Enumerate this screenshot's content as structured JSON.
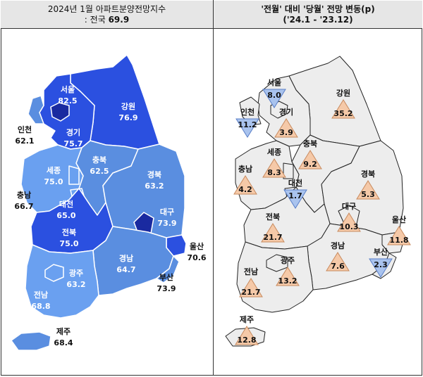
{
  "left_panel": {
    "title_line1": "2024년 1월 아파트분양전망지수",
    "title_line2_label": ": 전국",
    "title_line2_value": "69.9",
    "regions": [
      {
        "name": "서울",
        "value": "82.5",
        "color": "#2b50e0"
      },
      {
        "name": "강원",
        "value": "76.9",
        "color": "#2b50e0"
      },
      {
        "name": "인천",
        "value": "62.1",
        "color": "#ffffff"
      },
      {
        "name": "경기",
        "value": "75.7",
        "color": "#2b50e0"
      },
      {
        "name": "충북",
        "value": "62.5",
        "color": "#5a8ee0"
      },
      {
        "name": "세종",
        "value": "75.0",
        "color": "#6aa0f0"
      },
      {
        "name": "경북",
        "value": "63.2",
        "color": "#5a8ee0"
      },
      {
        "name": "충남",
        "value": "66.7",
        "color": "#ffffff"
      },
      {
        "name": "대전",
        "value": "65.0",
        "color": "#6aa0f0"
      },
      {
        "name": "대구",
        "value": "73.9",
        "color": "#5a8ee0"
      },
      {
        "name": "전북",
        "value": "75.0",
        "color": "#2b50e0"
      },
      {
        "name": "울산",
        "value": "70.6",
        "color": "#ffffff"
      },
      {
        "name": "경남",
        "value": "64.7",
        "color": "#5a8ee0"
      },
      {
        "name": "광주",
        "value": "63.2",
        "color": "#6aa0f0"
      },
      {
        "name": "부산",
        "value": "73.9",
        "color": "#ffffff"
      },
      {
        "name": "전남",
        "value": "68.8",
        "color": "#6aa0f0"
      },
      {
        "name": "제주",
        "value": "68.4",
        "color": "#ffffff"
      }
    ]
  },
  "right_panel": {
    "title_line1": "'전월' 대비 '당월' 전망 변동(p)",
    "title_line2": "('24.1 - '23.12)",
    "regions": [
      {
        "name": "서울",
        "value": "8.0",
        "direction": "down"
      },
      {
        "name": "강원",
        "value": "35.2",
        "direction": "up"
      },
      {
        "name": "인천",
        "value": "11.2",
        "direction": "down"
      },
      {
        "name": "경기",
        "value": "3.9",
        "direction": "up"
      },
      {
        "name": "충북",
        "value": "9.2",
        "direction": "up"
      },
      {
        "name": "세종",
        "value": "8.3",
        "direction": "up"
      },
      {
        "name": "충남",
        "value": "4.2",
        "direction": "up"
      },
      {
        "name": "대전",
        "value": "1.7",
        "direction": "down"
      },
      {
        "name": "경북",
        "value": "5.3",
        "direction": "up"
      },
      {
        "name": "대구",
        "value": "10.3",
        "direction": "up"
      },
      {
        "name": "울산",
        "value": "11.8",
        "direction": "up"
      },
      {
        "name": "전북",
        "value": "21.7",
        "direction": "up"
      },
      {
        "name": "경남",
        "value": "7.6",
        "direction": "up"
      },
      {
        "name": "광주",
        "value": "13.2",
        "direction": "up"
      },
      {
        "name": "부산",
        "value": "2.3",
        "direction": "down"
      },
      {
        "name": "전남",
        "value": "21.7",
        "direction": "up"
      },
      {
        "name": "제주",
        "value": "12.8",
        "direction": "up"
      }
    ],
    "colors": {
      "up": "#f5c9a8",
      "down": "#a9c3ee",
      "land": "#ededed"
    }
  }
}
